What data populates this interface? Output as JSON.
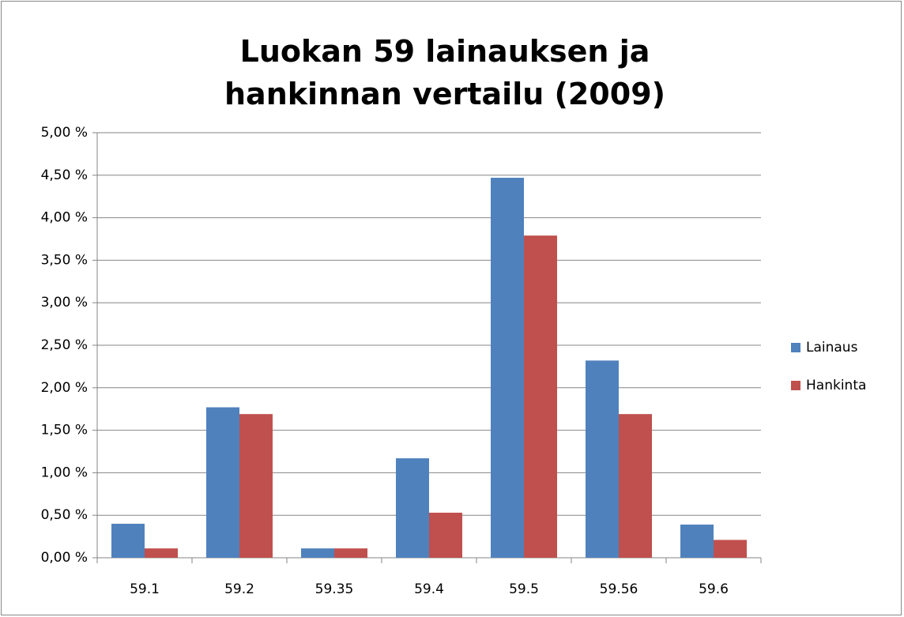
{
  "chart_data": {
    "type": "bar",
    "title": "Luokan 59 lainauksen ja hankinnan vertailu (2009)",
    "categories": [
      "59.1",
      "59.2",
      "59.35",
      "59.4",
      "59.5",
      "59.56",
      "59.6"
    ],
    "series": [
      {
        "name": "Lainaus",
        "color": "#4f81bd",
        "values": [
          0.4,
          1.77,
          0.11,
          1.17,
          4.47,
          2.32,
          0.39
        ]
      },
      {
        "name": "Hankinta",
        "color": "#c0504d",
        "values": [
          0.11,
          1.69,
          0.11,
          0.53,
          3.79,
          1.69,
          0.21
        ]
      }
    ],
    "ylim": [
      0,
      5
    ],
    "yticks": [
      {
        "value": 0,
        "label": "0,00 %"
      },
      {
        "value": 0.5,
        "label": "0,50 %"
      },
      {
        "value": 1,
        "label": "1,00 %"
      },
      {
        "value": 1.5,
        "label": "1,50 %"
      },
      {
        "value": 2,
        "label": "2,00 %"
      },
      {
        "value": 2.5,
        "label": "2,50 %"
      },
      {
        "value": 3,
        "label": "3,00 %"
      },
      {
        "value": 3.5,
        "label": "3,50 %"
      },
      {
        "value": 4,
        "label": "4,00 %"
      },
      {
        "value": 4.5,
        "label": "4,50 %"
      },
      {
        "value": 5,
        "label": "5,00 %"
      }
    ],
    "grid": true,
    "legend": "right"
  }
}
